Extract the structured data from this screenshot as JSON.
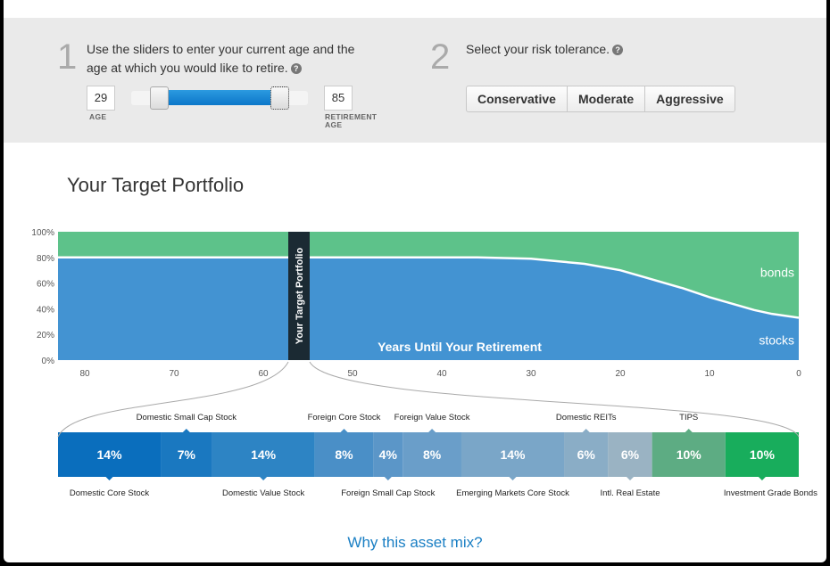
{
  "step1": {
    "number": "1",
    "text_line1": "Use the sliders to enter your current age and the",
    "text_line2": "age at which you would like to retire.",
    "current_age": "29",
    "current_age_label": "AGE",
    "retirement_age": "85",
    "retirement_age_label_1": "RETIREMENT",
    "retirement_age_label_2": "AGE",
    "help": "?"
  },
  "step2": {
    "number": "2",
    "text": "Select your risk tolerance.",
    "help": "?",
    "buttons": [
      "Conservative",
      "Moderate",
      "Aggressive"
    ]
  },
  "title": "Your Target Portfolio",
  "chart_data": {
    "type": "area",
    "y_ticks": [
      "100%",
      "80%",
      "60%",
      "40%",
      "20%",
      "0%"
    ],
    "x_ticks": [
      "80",
      "70",
      "60",
      "50",
      "40",
      "30",
      "20",
      "10",
      "0"
    ],
    "xlabel": "Years Until Your Retirement",
    "ylim": [
      0,
      100
    ],
    "xlim": [
      83,
      0
    ],
    "series": [
      {
        "name": "stocks",
        "color": "#4393d2",
        "x": [
          83,
          36,
          30,
          27,
          24,
          20,
          17,
          13,
          10,
          7,
          5,
          3,
          0
        ],
        "values": [
          80,
          80,
          79,
          77,
          75,
          70,
          64,
          56,
          49,
          43,
          39,
          36,
          33
        ]
      },
      {
        "name": "bonds",
        "color": "#5dc28a",
        "x": [
          83,
          36,
          30,
          27,
          24,
          20,
          17,
          13,
          10,
          7,
          5,
          3,
          0
        ],
        "values": [
          20,
          20,
          21,
          23,
          25,
          30,
          36,
          44,
          51,
          57,
          61,
          64,
          67
        ]
      }
    ],
    "marker": {
      "label": "Your Target Portfolio",
      "x": 56
    }
  },
  "allocation": {
    "segments": [
      {
        "pct": "14%",
        "value": 14,
        "color": "#0a6ebd"
      },
      {
        "pct": "7%",
        "value": 7,
        "color": "#1a78c0"
      },
      {
        "pct": "14%",
        "value": 14,
        "color": "#2d84c4"
      },
      {
        "pct": "8%",
        "value": 8,
        "color": "#4a8fc7"
      },
      {
        "pct": "4%",
        "value": 4,
        "color": "#5b96c8"
      },
      {
        "pct": "8%",
        "value": 8,
        "color": "#6a9ec9"
      },
      {
        "pct": "14%",
        "value": 14,
        "color": "#7aa6c8"
      },
      {
        "pct": "6%",
        "value": 6,
        "color": "#8aadc6"
      },
      {
        "pct": "6%",
        "value": 6,
        "color": "#9ab3c3"
      },
      {
        "pct": "10%",
        "value": 10,
        "color": "#5dac83"
      },
      {
        "pct": "10%",
        "value": 10,
        "color": "#18ad5c"
      }
    ],
    "labels_above": [
      "Domestic Small Cap Stock",
      "Foreign Core Stock",
      "Foreign Value Stock",
      "Domestic REITs",
      "TIPS"
    ],
    "labels_below": [
      "Domestic Core Stock",
      "Domestic Value Stock",
      "Foreign Small Cap Stock",
      "Emerging Markets Core Stock",
      "Intl. Real Estate",
      "Investment Grade Bonds"
    ]
  },
  "link": "Why this asset mix?"
}
